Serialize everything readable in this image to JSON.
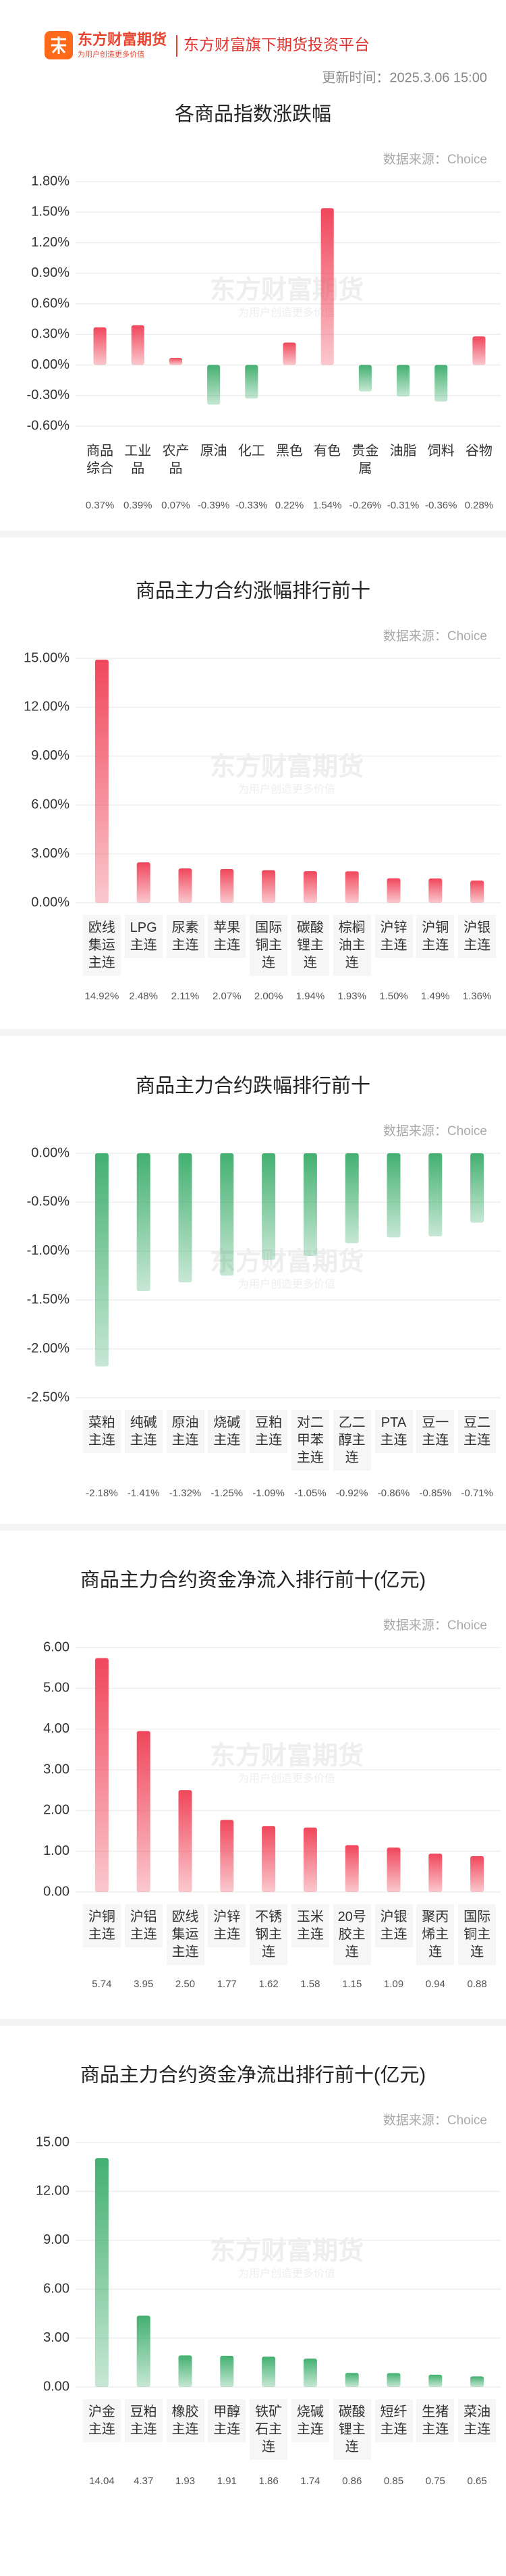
{
  "header": {
    "brand": "东方财富期货",
    "slogan": "为用户创造更多价值",
    "platform": "东方财富旗下期货投资平台",
    "update_time": "更新时间：2025.3.06 15:00"
  },
  "chart_data": [
    {
      "type": "bar",
      "title": "各商品指数涨跌幅",
      "source": "数据来源：Choice",
      "categories": [
        "商品综合",
        "工业品",
        "农产品",
        "原油",
        "化工",
        "黑色",
        "有色",
        "贵金属",
        "油脂",
        "饲料",
        "谷物"
      ],
      "values": [
        0.37,
        0.39,
        0.07,
        -0.39,
        -0.33,
        0.22,
        1.54,
        -0.26,
        -0.31,
        -0.36,
        0.28
      ],
      "value_labels": [
        "0.37%",
        "0.39%",
        "0.07%",
        "-0.39%",
        "-0.33%",
        "0.22%",
        "1.54%",
        "-0.26%",
        "-0.31%",
        "-0.36%",
        "0.28%"
      ],
      "positive_color": "#f0475b",
      "negative_color": "#43b070",
      "ylim": [
        -0.6,
        1.8
      ],
      "yticks": [
        {
          "value": 1.8,
          "label": "1.80%"
        },
        {
          "value": 1.5,
          "label": "1.50%"
        },
        {
          "value": 1.2,
          "label": "1.20%"
        },
        {
          "value": 0.9,
          "label": "0.90%"
        },
        {
          "value": 0.6,
          "label": "0.60%"
        },
        {
          "value": 0.3,
          "label": "0.30%"
        },
        {
          "value": 0,
          "label": "0.00%"
        },
        {
          "value": -0.3,
          "label": "-0.30%"
        },
        {
          "value": -0.6,
          "label": "-0.60%"
        }
      ],
      "grid": true
    },
    {
      "type": "bar",
      "title": "商品主力合约涨幅排行前十",
      "source": "数据来源：Choice",
      "categories": [
        "欧线集运主连",
        "LPG主连",
        "尿素主连",
        "苹果主连",
        "国际铜主连",
        "碳酸锂主连",
        "棕榈油主连",
        "沪锌主连",
        "沪铜主连",
        "沪银主连"
      ],
      "values": [
        14.92,
        2.48,
        2.11,
        2.07,
        2.0,
        1.94,
        1.93,
        1.5,
        1.49,
        1.36
      ],
      "value_labels": [
        "14.92%",
        "2.48%",
        "2.11%",
        "2.07%",
        "2.00%",
        "1.94%",
        "1.93%",
        "1.50%",
        "1.49%",
        "1.36%"
      ],
      "color": "#f0475b",
      "ylim": [
        0,
        15
      ],
      "yticks": [
        {
          "value": 15,
          "label": "15.00%"
        },
        {
          "value": 12,
          "label": "12.00%"
        },
        {
          "value": 9,
          "label": "9.00%"
        },
        {
          "value": 6,
          "label": "6.00%"
        },
        {
          "value": 3,
          "label": "3.00%"
        },
        {
          "value": 0,
          "label": "0.00%"
        }
      ],
      "grid": true
    },
    {
      "type": "bar",
      "title": "商品主力合约跌幅排行前十",
      "source": "数据来源：Choice",
      "categories": [
        "菜粕主连",
        "纯碱主连",
        "原油主连",
        "烧碱主连",
        "豆粕主连",
        "对二甲苯主连",
        "乙二醇主连",
        "PTA主连",
        "豆一主连",
        "豆二主连"
      ],
      "values": [
        -2.18,
        -1.41,
        -1.32,
        -1.25,
        -1.09,
        -1.05,
        -0.92,
        -0.86,
        -0.85,
        -0.71
      ],
      "value_labels": [
        "-2.18%",
        "-1.41%",
        "-1.32%",
        "-1.25%",
        "-1.09%",
        "-1.05%",
        "-0.92%",
        "-0.86%",
        "-0.85%",
        "-0.71%"
      ],
      "color": "#43b070",
      "ylim": [
        -2.5,
        0
      ],
      "yticks": [
        {
          "value": 0,
          "label": "0.00%"
        },
        {
          "value": -0.5,
          "label": "-0.50%"
        },
        {
          "value": -1,
          "label": "-1.00%"
        },
        {
          "value": -1.5,
          "label": "-1.50%"
        },
        {
          "value": -2,
          "label": "-2.00%"
        },
        {
          "value": -2.5,
          "label": "-2.50%"
        }
      ],
      "grid": true
    },
    {
      "type": "bar",
      "title": "商品主力合约资金净流入排行前十(亿元)",
      "source": "数据来源：Choice",
      "categories": [
        "沪铜主连",
        "沪铝主连",
        "欧线集运主连",
        "沪锌主连",
        "不锈钢主连",
        "玉米主连",
        "20号胶主连",
        "沪银主连",
        "聚丙烯主连",
        "国际铜主连"
      ],
      "values": [
        5.74,
        3.95,
        2.5,
        1.77,
        1.62,
        1.58,
        1.15,
        1.09,
        0.94,
        0.88
      ],
      "value_labels": [
        "5.74",
        "3.95",
        "2.50",
        "1.77",
        "1.62",
        "1.58",
        "1.15",
        "1.09",
        "0.94",
        "0.88"
      ],
      "color": "#f0475b",
      "ylim": [
        0,
        6
      ],
      "yticks": [
        {
          "value": 6,
          "label": "6.00"
        },
        {
          "value": 5,
          "label": "5.00"
        },
        {
          "value": 4,
          "label": "4.00"
        },
        {
          "value": 3,
          "label": "3.00"
        },
        {
          "value": 2,
          "label": "2.00"
        },
        {
          "value": 1,
          "label": "1.00"
        },
        {
          "value": 0,
          "label": "0.00"
        }
      ],
      "grid": true
    },
    {
      "type": "bar",
      "title": "商品主力合约资金净流出排行前十(亿元)",
      "source": "数据来源：Choice",
      "categories": [
        "沪金主连",
        "豆粕主连",
        "橡胶主连",
        "甲醇主连",
        "铁矿石主连",
        "烧碱主连",
        "碳酸锂主连",
        "短纤主连",
        "生猪主连",
        "菜油主连"
      ],
      "values": [
        14.04,
        4.37,
        1.93,
        1.91,
        1.86,
        1.74,
        0.86,
        0.85,
        0.75,
        0.65
      ],
      "value_labels": [
        "14.04",
        "4.37",
        "1.93",
        "1.91",
        "1.86",
        "1.74",
        "0.86",
        "0.85",
        "0.75",
        "0.65"
      ],
      "color": "#43b070",
      "ylim": [
        0,
        15
      ],
      "yticks": [
        {
          "value": 15,
          "label": "15.00"
        },
        {
          "value": 12,
          "label": "12.00"
        },
        {
          "value": 9,
          "label": "9.00"
        },
        {
          "value": 6,
          "label": "6.00"
        },
        {
          "value": 3,
          "label": "3.00"
        },
        {
          "value": 0,
          "label": "0.00"
        }
      ],
      "grid": true
    }
  ]
}
